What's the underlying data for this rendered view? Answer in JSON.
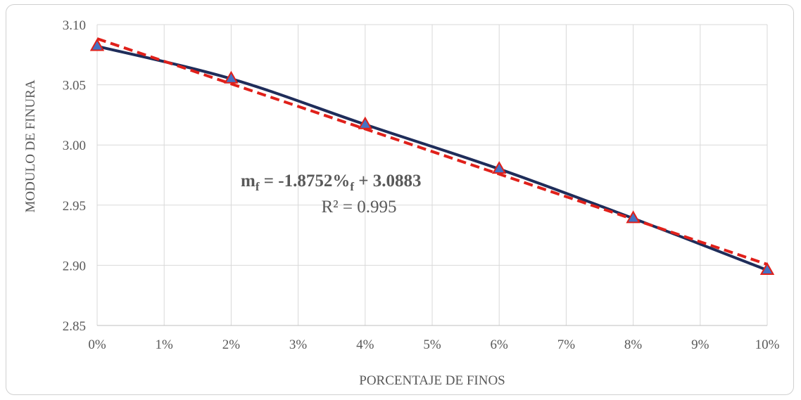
{
  "chart_data": {
    "type": "line",
    "xlabel": "PORCENTAJE DE FINOS",
    "ylabel": "MODULO DE FINURA",
    "x_ticks": [
      "0%",
      "1%",
      "2%",
      "3%",
      "4%",
      "5%",
      "6%",
      "7%",
      "8%",
      "9%",
      "10%"
    ],
    "y_ticks": [
      "2.85",
      "2.90",
      "2.95",
      "3.00",
      "3.05",
      "3.10"
    ],
    "xlim": [
      0,
      0.1
    ],
    "ylim": [
      2.85,
      3.1
    ],
    "grid": true,
    "series": [
      {
        "x": [
          0,
          0.02,
          0.04,
          0.06,
          0.08,
          0.1
        ],
        "y": [
          3.082,
          3.055,
          3.017,
          2.98,
          2.939,
          2.896
        ],
        "color": "#1f2d5a",
        "marker": "triangle",
        "marker_fill": "#4472c4",
        "marker_edge": "#e0201a"
      }
    ],
    "trendline": {
      "slope": -1.8752,
      "intercept": 3.0883,
      "color": "#e0201a",
      "style": "dashed"
    },
    "equation": {
      "lhs_main": "m",
      "lhs_sub": "f",
      "mid": " = -1.8752%",
      "mid_sub": "f",
      "rhs": " + 3.0883",
      "r2": "R² = 0.995"
    }
  }
}
